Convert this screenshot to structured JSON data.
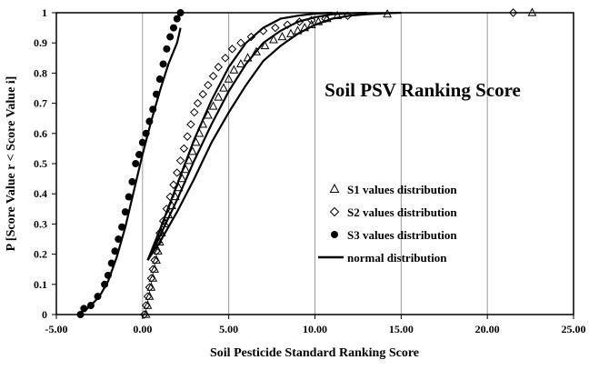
{
  "chart_data": {
    "type": "scatter",
    "title": "Soil PSV Ranking Score",
    "xlabel": "Soil Pesticide Standard Ranking Score",
    "ylabel": "P [Score Value r < Score Value i]",
    "xlim": [
      -5,
      25
    ],
    "ylim": [
      0,
      1
    ],
    "xticks": [
      -5,
      0,
      5,
      10,
      15,
      20,
      25
    ],
    "xtick_labels": [
      "-5.00",
      "0.00",
      "5.00",
      "10.00",
      "15.00",
      "20.00",
      "25.00"
    ],
    "yticks": [
      0,
      0.1,
      0.2,
      0.3,
      0.4,
      0.5,
      0.6,
      0.7,
      0.8,
      0.9,
      1
    ],
    "ytick_labels": [
      "0",
      "0.1",
      "0.2",
      "0.3",
      "0.4",
      "0.5",
      "0.6",
      "0.7",
      "0.8",
      "0.9",
      "1"
    ],
    "grid": "vertical",
    "legend_position": "lower-right",
    "series": [
      {
        "name": "S1 values distribution",
        "marker": "triangle",
        "x": [
          0.2,
          0.3,
          0.4,
          0.5,
          0.6,
          0.7,
          0.8,
          0.9,
          1.0,
          1.1,
          1.3,
          1.5,
          1.7,
          1.9,
          2.1,
          2.3,
          2.5,
          2.7,
          2.9,
          3.1,
          3.3,
          3.5,
          3.8,
          4.1,
          4.4,
          4.7,
          5.0,
          5.3,
          5.7,
          6.1,
          6.6,
          7.1,
          7.6,
          8.1,
          8.6,
          9.0,
          9.4,
          9.8,
          10.2,
          10.7,
          11.3,
          14.2,
          22.6
        ],
        "y": [
          0.0,
          0.03,
          0.06,
          0.09,
          0.12,
          0.15,
          0.18,
          0.21,
          0.24,
          0.27,
          0.3,
          0.33,
          0.36,
          0.39,
          0.42,
          0.45,
          0.48,
          0.51,
          0.54,
          0.57,
          0.6,
          0.63,
          0.66,
          0.69,
          0.72,
          0.75,
          0.78,
          0.81,
          0.83,
          0.85,
          0.87,
          0.89,
          0.91,
          0.92,
          0.93,
          0.94,
          0.95,
          0.96,
          0.97,
          0.98,
          0.99,
          0.995,
          1.0
        ]
      },
      {
        "name": "S2 values distribution",
        "marker": "diamond",
        "x": [
          0.1,
          0.2,
          0.3,
          0.4,
          0.5,
          0.6,
          0.7,
          0.8,
          0.9,
          1.0,
          1.2,
          1.4,
          1.6,
          1.8,
          2.0,
          2.2,
          2.4,
          2.6,
          2.8,
          3.0,
          3.2,
          3.5,
          3.8,
          4.1,
          4.4,
          4.8,
          5.2,
          5.7,
          6.3,
          7.0,
          7.7,
          8.4,
          9.1,
          9.8,
          10.6,
          11.9,
          21.5
        ],
        "y": [
          0.0,
          0.03,
          0.06,
          0.09,
          0.12,
          0.15,
          0.18,
          0.21,
          0.24,
          0.27,
          0.31,
          0.35,
          0.39,
          0.43,
          0.47,
          0.51,
          0.55,
          0.59,
          0.63,
          0.67,
          0.7,
          0.73,
          0.76,
          0.79,
          0.82,
          0.85,
          0.88,
          0.9,
          0.92,
          0.94,
          0.95,
          0.96,
          0.97,
          0.975,
          0.98,
          0.99,
          1.0
        ]
      },
      {
        "name": "S3 values distribution",
        "marker": "circle",
        "x": [
          -3.6,
          -3.4,
          -3.0,
          -2.6,
          -2.2,
          -2.0,
          -1.8,
          -1.6,
          -1.4,
          -1.2,
          -1.0,
          -0.8,
          -0.6,
          -0.4,
          -0.2,
          0.0,
          0.2,
          0.4,
          0.6,
          0.8,
          1.0,
          1.2,
          1.4,
          1.6,
          1.8,
          2.0,
          2.2
        ],
        "y": [
          0.0,
          0.02,
          0.03,
          0.06,
          0.1,
          0.13,
          0.17,
          0.21,
          0.25,
          0.29,
          0.34,
          0.39,
          0.44,
          0.5,
          0.53,
          0.57,
          0.6,
          0.64,
          0.68,
          0.73,
          0.78,
          0.83,
          0.88,
          0.92,
          0.95,
          0.98,
          1.0
        ]
      },
      {
        "name": "normal distribution",
        "marker": "line",
        "curves": [
          {
            "x": [
              -3.4,
              -3.0,
              -2.5,
              -2.0,
              -1.5,
              -1.0,
              -0.5,
              0.0,
              0.5,
              1.0,
              1.5,
              2.0,
              2.2
            ],
            "y": [
              0.01,
              0.03,
              0.06,
              0.11,
              0.19,
              0.29,
              0.41,
              0.53,
              0.64,
              0.74,
              0.83,
              0.9,
              0.95
            ]
          },
          {
            "x": [
              0.3,
              1.0,
              2.0,
              3.0,
              4.0,
              5.0,
              6.0,
              7.0,
              8.0,
              9.0,
              10.0,
              11.0,
              12.0,
              13.0,
              14.0,
              15.0
            ],
            "y": [
              0.18,
              0.24,
              0.34,
              0.45,
              0.57,
              0.67,
              0.76,
              0.84,
              0.89,
              0.93,
              0.96,
              0.98,
              0.99,
              0.995,
              0.998,
              1.0
            ]
          },
          {
            "x": [
              0.3,
              1.0,
              2.0,
              3.0,
              4.0,
              5.0,
              6.0,
              7.0,
              8.0,
              9.0,
              10.0,
              11.0,
              12.0,
              13.0
            ],
            "y": [
              0.18,
              0.26,
              0.38,
              0.51,
              0.63,
              0.74,
              0.83,
              0.9,
              0.94,
              0.97,
              0.985,
              0.995,
              0.998,
              1.0
            ]
          },
          {
            "x": [
              0.3,
              1.0,
              2.0,
              3.0,
              4.0,
              5.0,
              6.0,
              7.0,
              8.0,
              9.0,
              10.0,
              11.0
            ],
            "y": [
              0.18,
              0.28,
              0.43,
              0.58,
              0.71,
              0.82,
              0.9,
              0.95,
              0.98,
              0.99,
              0.997,
              1.0
            ]
          }
        ]
      }
    ]
  }
}
